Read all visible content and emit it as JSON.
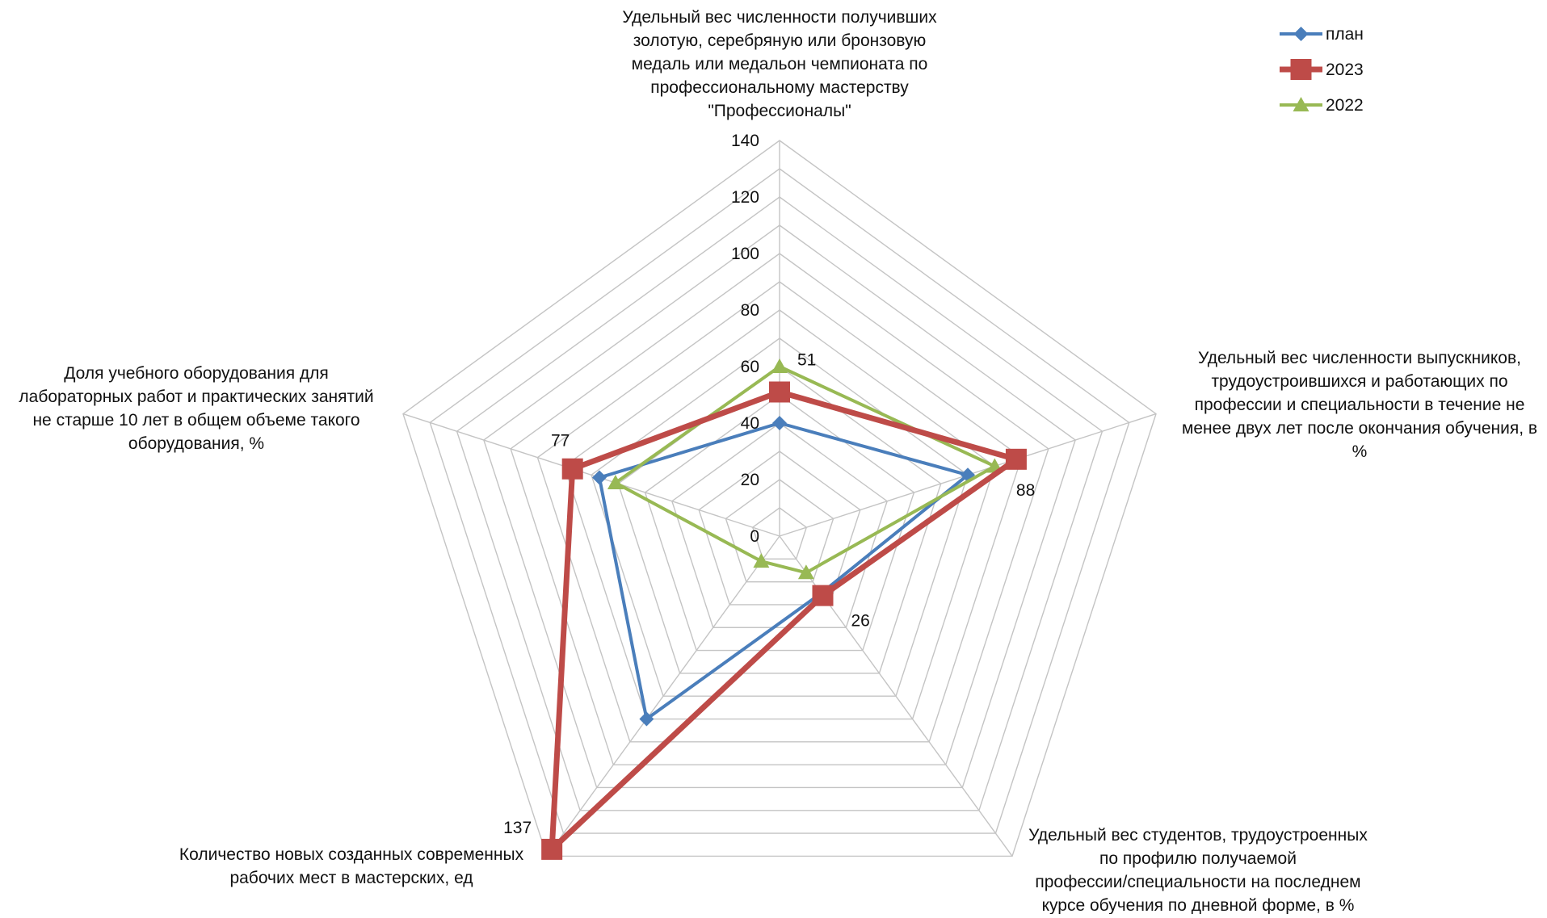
{
  "chart_data": {
    "type": "radar",
    "title": "",
    "axes": [
      {
        "key": "medals",
        "label": "Удельный вес численности получивших золотую, серебряную или бронзовую медаль или медальон чемпионата по профессиональному мастерству \"Профессионалы\"",
        "label_lines": [
          "Удельный вес численности получивших",
          "золотую, серебряную или бронзовую",
          "медаль или медальон чемпионата по",
          "профессиональному мастерству",
          "\"Профессионалы\""
        ]
      },
      {
        "key": "graduates_employed",
        "label": "Удельный вес численности выпускников, трудоустроившихся и работающих по профессии и специальности в течение не менее двух лет после окончания обучения, в %",
        "label_lines": [
          "Удельный вес численности выпускников,",
          "трудоустроившихся и работающих по",
          "профессии и  специальности в течение не",
          "менее двух лет после окончания обучения, в",
          "%"
        ]
      },
      {
        "key": "students_employed",
        "label": "Удельный вес студентов, трудоустроенных по профилю получаемой профессии/специальности на последнем курсе обучения по дневной форме, в %",
        "label_lines": [
          "Удельный вес студентов, трудоустроенных",
          "по профилю получаемой",
          "профессии/специальности на последнем",
          "курсе обучения по дневной форме, в %"
        ]
      },
      {
        "key": "new_workplaces",
        "label": "Количество новых созданных современных рабочих мест в мастерских, ед",
        "label_lines": [
          "Количество новых созданных современных",
          "рабочих мест в мастерских, ед"
        ]
      },
      {
        "key": "equipment_share",
        "label": "Доля учебного оборудования для лабораторных работ и практических занятий не старше 10 лет в общем объеме такого оборудования, %",
        "label_lines": [
          "Доля учебного оборудования для",
          "лабораторных работ и практических занятий",
          "не старше 10 лет в общем объеме такого",
          "оборудования, %"
        ]
      }
    ],
    "r_range": [
      0,
      140
    ],
    "r_ticks": [
      0,
      20,
      40,
      60,
      80,
      100,
      120,
      140
    ],
    "r_tick_labels": [
      "0",
      "20",
      "40",
      "60",
      "80",
      "100",
      "120",
      "140"
    ],
    "grid": true,
    "legend_position": "top-right",
    "series": [
      {
        "name": "план",
        "color": "#4a7ebb",
        "marker": "diamond",
        "values": [
          40,
          70,
          25,
          80,
          67
        ]
      },
      {
        "name": "2023",
        "color": "#be4b48",
        "marker": "square",
        "values": [
          51,
          88,
          26,
          137,
          77
        ]
      },
      {
        "name": "2022",
        "color": "#98b954",
        "marker": "triangle",
        "values": [
          60,
          80,
          16,
          11,
          61
        ]
      }
    ],
    "data_labels": [
      {
        "series": 1,
        "axis": 0,
        "text": "51",
        "placement": "right"
      },
      {
        "series": 1,
        "axis": 1,
        "text": "88",
        "placement": "below-right"
      },
      {
        "series": 1,
        "axis": 2,
        "text": "26",
        "placement": "below-right"
      },
      {
        "series": 1,
        "axis": 3,
        "text": "137",
        "placement": "upper-left"
      },
      {
        "series": 1,
        "axis": 4,
        "text": "77",
        "placement": "above"
      }
    ]
  }
}
